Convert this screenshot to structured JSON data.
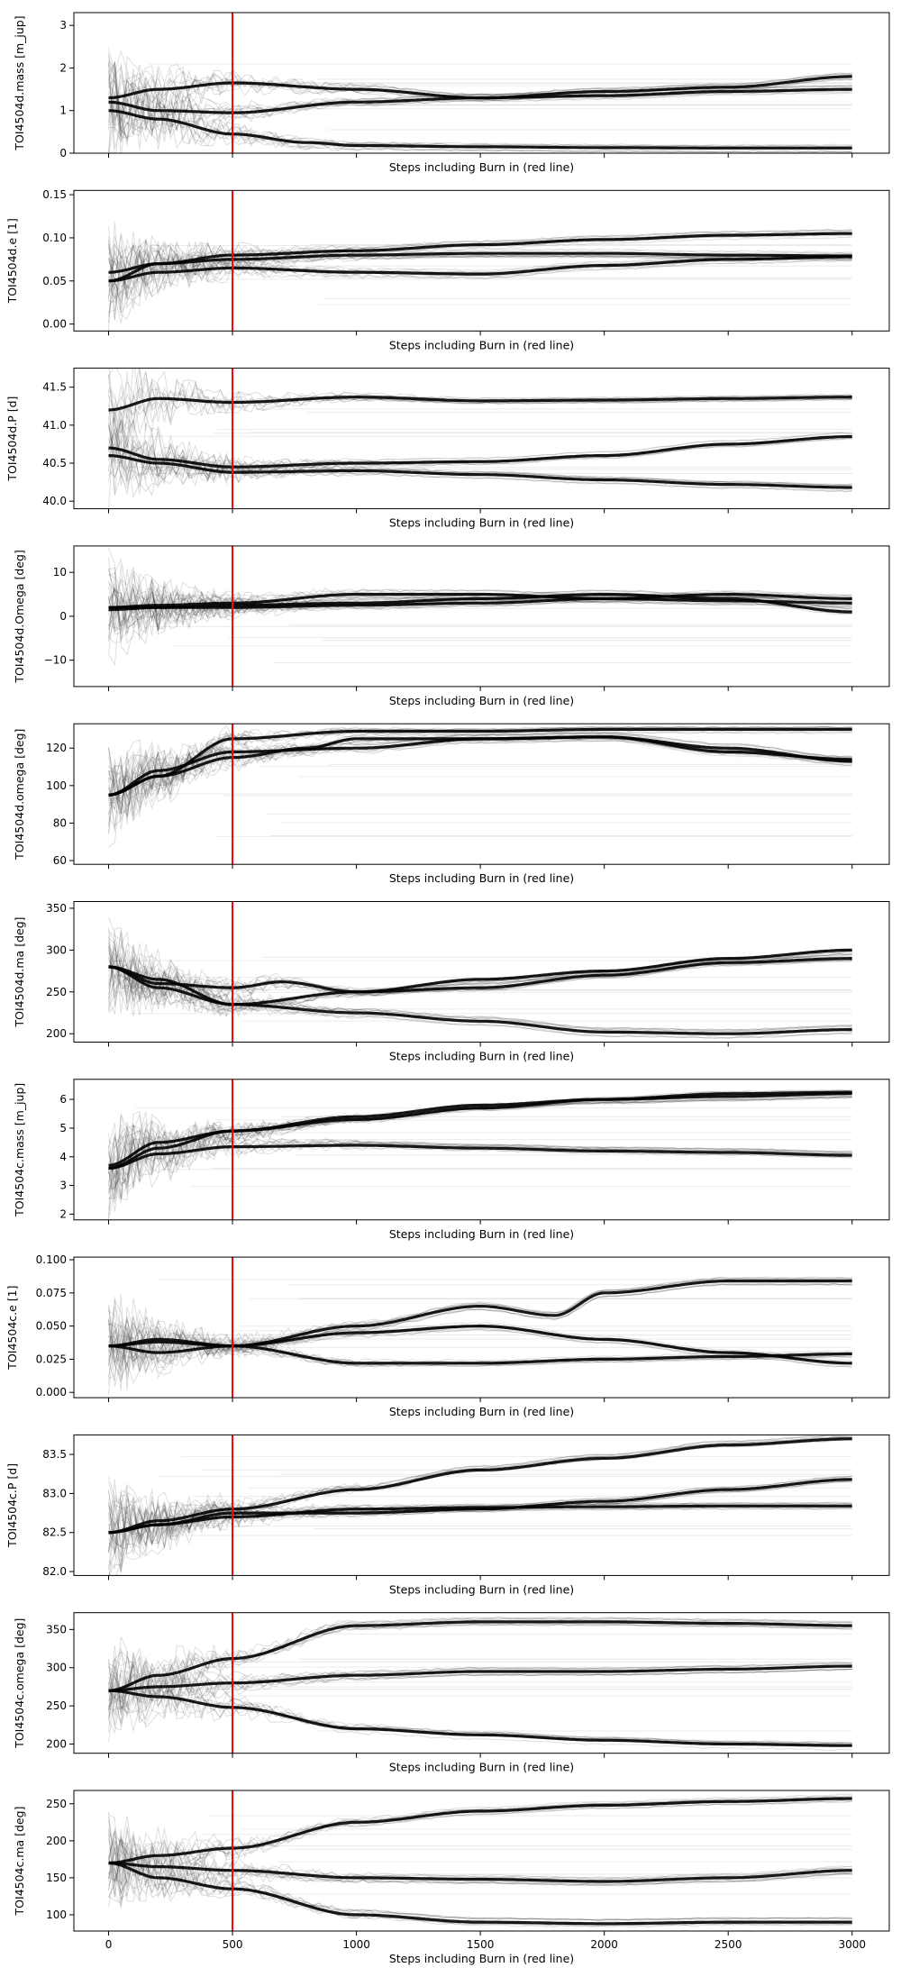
{
  "chart_data": {
    "type": "line",
    "shared_xlabel": "Steps including Burn in (red line)",
    "x_ticks": [
      0,
      500,
      1000,
      1500,
      2000,
      2500,
      3000
    ],
    "xlim": [
      -140,
      3150
    ],
    "burn_in_step": 500,
    "burn_in_color": "#ff0000",
    "walker_color": "#000000",
    "panels": [
      {
        "ylabel": "TOI4504d.mass [m_jup]",
        "ylim": [
          0,
          3.3
        ],
        "yticks": [
          0,
          1,
          2,
          3
        ],
        "tick_labels": [
          "0",
          "1",
          "2",
          "3"
        ],
        "chains": [
          {
            "x": [
              0,
              200,
              500,
              1000,
              1500,
              2000,
              2500,
              3000
            ],
            "y": [
              1.3,
              1.5,
              1.65,
              1.5,
              1.3,
              1.35,
              1.45,
              1.5
            ]
          },
          {
            "x": [
              0,
              200,
              500,
              1000,
              1500,
              2000,
              2500,
              3000
            ],
            "y": [
              1.2,
              1.0,
              0.95,
              1.2,
              1.3,
              1.45,
              1.55,
              1.8
            ]
          },
          {
            "x": [
              0,
              200,
              500,
              800,
              1000,
              1500,
              2000,
              2500,
              3000
            ],
            "y": [
              1.0,
              0.8,
              0.45,
              0.25,
              0.18,
              0.15,
              0.13,
              0.12,
              0.12
            ]
          }
        ]
      },
      {
        "ylabel": "TOI4504d.e [1]",
        "ylim": [
          -0.008,
          0.155
        ],
        "yticks": [
          0.0,
          0.05,
          0.1,
          0.15
        ],
        "tick_labels": [
          "0.00",
          "0.05",
          "0.10",
          "0.15"
        ],
        "chains": [
          {
            "x": [
              0,
              200,
              500,
              1000,
              1500,
              2000,
              2500,
              3000
            ],
            "y": [
              0.06,
              0.07,
              0.08,
              0.085,
              0.092,
              0.098,
              0.103,
              0.105
            ]
          },
          {
            "x": [
              0,
              200,
              500,
              1000,
              1500,
              2000,
              2500,
              3000
            ],
            "y": [
              0.05,
              0.06,
              0.065,
              0.06,
              0.058,
              0.068,
              0.075,
              0.078
            ]
          },
          {
            "x": [
              0,
              200,
              500,
              1000,
              1500,
              2000,
              2500,
              3000
            ],
            "y": [
              0.05,
              0.07,
              0.075,
              0.08,
              0.082,
              0.082,
              0.08,
              0.079
            ]
          }
        ]
      },
      {
        "ylabel": "TOI4504d.P [d]",
        "ylim": [
          39.9,
          41.75
        ],
        "yticks": [
          40.0,
          40.5,
          41.0,
          41.5
        ],
        "tick_labels": [
          "40.0",
          "40.5",
          "41.0",
          "41.5"
        ],
        "chains": [
          {
            "x": [
              0,
              200,
              500,
              1000,
              1500,
              2000,
              2500,
              3000
            ],
            "y": [
              41.2,
              41.35,
              41.3,
              41.37,
              41.32,
              41.33,
              41.35,
              41.37
            ]
          },
          {
            "x": [
              0,
              200,
              500,
              1000,
              1500,
              2000,
              2500,
              3000
            ],
            "y": [
              40.7,
              40.55,
              40.45,
              40.5,
              40.52,
              40.6,
              40.75,
              40.85
            ]
          },
          {
            "x": [
              0,
              200,
              500,
              1000,
              1500,
              2000,
              2500,
              3000
            ],
            "y": [
              40.6,
              40.5,
              40.38,
              40.4,
              40.35,
              40.28,
              40.22,
              40.18
            ]
          }
        ]
      },
      {
        "ylabel": "TOI4504d.Omega [deg]",
        "ylim": [
          -16,
          16
        ],
        "yticks": [
          -10,
          0,
          10
        ],
        "tick_labels": [
          "−10",
          "0",
          "10"
        ],
        "chains": [
          {
            "x": [
              0,
              200,
              500,
              1000,
              1500,
              2000,
              2500,
              3000
            ],
            "y": [
              2,
              2.5,
              3,
              5,
              5,
              4,
              3.5,
              3
            ]
          },
          {
            "x": [
              0,
              200,
              500,
              1000,
              1500,
              2000,
              2500,
              3000
            ],
            "y": [
              2,
              2,
              2.5,
              3,
              4,
              5,
              4,
              1
            ]
          },
          {
            "x": [
              0,
              200,
              500,
              1000,
              1500,
              2000,
              2500,
              3000
            ],
            "y": [
              1.5,
              2,
              2,
              2.5,
              3,
              4,
              5,
              4
            ]
          }
        ]
      },
      {
        "ylabel": "TOI4504d.omega [deg]",
        "ylim": [
          58,
          133
        ],
        "yticks": [
          60,
          80,
          100,
          120
        ],
        "tick_labels": [
          "60",
          "80",
          "100",
          "120"
        ],
        "chains": [
          {
            "x": [
              0,
              200,
              500,
              1000,
              1500,
              2000,
              2500,
              3000
            ],
            "y": [
              95,
              105,
              125,
              129,
              129,
              130,
              130,
              130
            ]
          },
          {
            "x": [
              0,
              200,
              500,
              800,
              1000,
              1500,
              2000,
              2500,
              3000
            ],
            "y": [
              95,
              105,
              115,
              120,
              125,
              125,
              126,
              118,
              114
            ]
          },
          {
            "x": [
              0,
              200,
              500,
              1000,
              1500,
              2000,
              2500,
              3000
            ],
            "y": [
              95,
              108,
              118,
              120,
              125,
              126,
              120,
              113
            ]
          }
        ]
      },
      {
        "ylabel": "TOI4504d.ma [deg]",
        "ylim": [
          190,
          358
        ],
        "yticks": [
          200,
          250,
          300,
          350
        ],
        "tick_labels": [
          "200",
          "250",
          "300",
          "350"
        ],
        "chains": [
          {
            "x": [
              0,
              200,
              500,
              1000,
              1500,
              2000,
              2500,
              3000
            ],
            "y": [
              280,
              265,
              235,
              250,
              265,
              275,
              290,
              300
            ]
          },
          {
            "x": [
              0,
              200,
              500,
              700,
              1000,
              1500,
              2000,
              2500,
              3000
            ],
            "y": [
              280,
              260,
              255,
              262,
              250,
              255,
              270,
              285,
              290
            ]
          },
          {
            "x": [
              0,
              200,
              500,
              1000,
              1500,
              2000,
              2500,
              3000
            ],
            "y": [
              280,
              255,
              235,
              225,
              215,
              202,
              200,
              205
            ]
          }
        ]
      },
      {
        "ylabel": "TOI4504c.mass [m_jup]",
        "ylim": [
          1.8,
          6.7
        ],
        "yticks": [
          2,
          3,
          4,
          5,
          6
        ],
        "tick_labels": [
          "2",
          "3",
          "4",
          "5",
          "6"
        ],
        "chains": [
          {
            "x": [
              0,
              200,
              500,
              1000,
              1500,
              2000,
              2500,
              3000
            ],
            "y": [
              3.7,
              4.5,
              4.9,
              5.3,
              5.7,
              6.0,
              6.2,
              6.25
            ]
          },
          {
            "x": [
              0,
              200,
              500,
              1000,
              1500,
              2000,
              2500,
              3000
            ],
            "y": [
              3.6,
              4.1,
              4.35,
              4.4,
              4.3,
              4.2,
              4.15,
              4.05
            ]
          },
          {
            "x": [
              0,
              200,
              500,
              1000,
              1500,
              2000,
              2500,
              3000
            ],
            "y": [
              3.6,
              4.3,
              4.9,
              5.4,
              5.8,
              6.0,
              6.1,
              6.2
            ]
          }
        ]
      },
      {
        "ylabel": "TOI4504c.e [1]",
        "ylim": [
          -0.004,
          0.102
        ],
        "yticks": [
          0.0,
          0.025,
          0.05,
          0.075,
          0.1
        ],
        "tick_labels": [
          "0.000",
          "0.025",
          "0.050",
          "0.075",
          "0.100"
        ],
        "chains": [
          {
            "x": [
              0,
              200,
              500,
              1000,
              1500,
              1800,
              2000,
              2500,
              3000
            ],
            "y": [
              0.035,
              0.03,
              0.035,
              0.05,
              0.065,
              0.058,
              0.075,
              0.084,
              0.084
            ]
          },
          {
            "x": [
              0,
              200,
              500,
              1000,
              1500,
              2000,
              2500,
              3000
            ],
            "y": [
              0.035,
              0.04,
              0.035,
              0.022,
              0.022,
              0.025,
              0.027,
              0.029
            ]
          },
          {
            "x": [
              0,
              200,
              500,
              1000,
              1500,
              2000,
              2500,
              3000
            ],
            "y": [
              0.035,
              0.038,
              0.035,
              0.045,
              0.05,
              0.04,
              0.03,
              0.022
            ]
          }
        ]
      },
      {
        "ylabel": "TOI4504c.P [d]",
        "ylim": [
          81.95,
          83.75
        ],
        "yticks": [
          82.0,
          82.5,
          83.0,
          83.5
        ],
        "tick_labels": [
          "82.0",
          "82.5",
          "83.0",
          "83.5"
        ],
        "chains": [
          {
            "x": [
              0,
              200,
              500,
              1000,
              1500,
              2000,
              2500,
              3000
            ],
            "y": [
              82.5,
              82.65,
              82.8,
              83.05,
              83.3,
              83.45,
              83.62,
              83.7
            ]
          },
          {
            "x": [
              0,
              200,
              500,
              1000,
              1500,
              2000,
              2500,
              3000
            ],
            "y": [
              82.5,
              82.6,
              82.75,
              82.75,
              82.8,
              82.9,
              83.05,
              83.18
            ]
          },
          {
            "x": [
              0,
              200,
              500,
              1000,
              1500,
              2000,
              2500,
              3000
            ],
            "y": [
              82.5,
              82.6,
              82.7,
              82.8,
              82.82,
              82.83,
              82.84,
              82.84
            ]
          }
        ]
      },
      {
        "ylabel": "TOI4504c.omega [deg]",
        "ylim": [
          188,
          372
        ],
        "yticks": [
          200,
          250,
          300,
          350
        ],
        "tick_labels": [
          "200",
          "250",
          "300",
          "350"
        ],
        "chains": [
          {
            "x": [
              0,
              200,
              500,
              1000,
              1500,
              2000,
              2500,
              3000
            ],
            "y": [
              270,
              290,
              312,
              355,
              360,
              360,
              358,
              355
            ]
          },
          {
            "x": [
              0,
              200,
              500,
              1000,
              1500,
              2000,
              2500,
              3000
            ],
            "y": [
              270,
              275,
              280,
              290,
              295,
              295,
              298,
              302
            ]
          },
          {
            "x": [
              0,
              200,
              500,
              1000,
              1500,
              2000,
              2500,
              3000
            ],
            "y": [
              270,
              262,
              248,
              220,
              212,
              205,
              200,
              198
            ]
          }
        ]
      },
      {
        "ylabel": "TOI4504c.ma [deg]",
        "ylim": [
          78,
          268
        ],
        "yticks": [
          100,
          150,
          200,
          250
        ],
        "tick_labels": [
          "100",
          "150",
          "200",
          "250"
        ],
        "chains": [
          {
            "x": [
              0,
              200,
              500,
              1000,
              1500,
              2000,
              2500,
              3000
            ],
            "y": [
              170,
              180,
              190,
              225,
              240,
              248,
              253,
              257
            ]
          },
          {
            "x": [
              0,
              200,
              500,
              1000,
              1500,
              2000,
              2500,
              3000
            ],
            "y": [
              170,
              165,
              160,
              150,
              148,
              145,
              150,
              160
            ]
          },
          {
            "x": [
              0,
              200,
              500,
              1000,
              1500,
              2000,
              2500,
              3000
            ],
            "y": [
              170,
              150,
              135,
              100,
              90,
              88,
              90,
              90
            ]
          }
        ]
      }
    ]
  }
}
